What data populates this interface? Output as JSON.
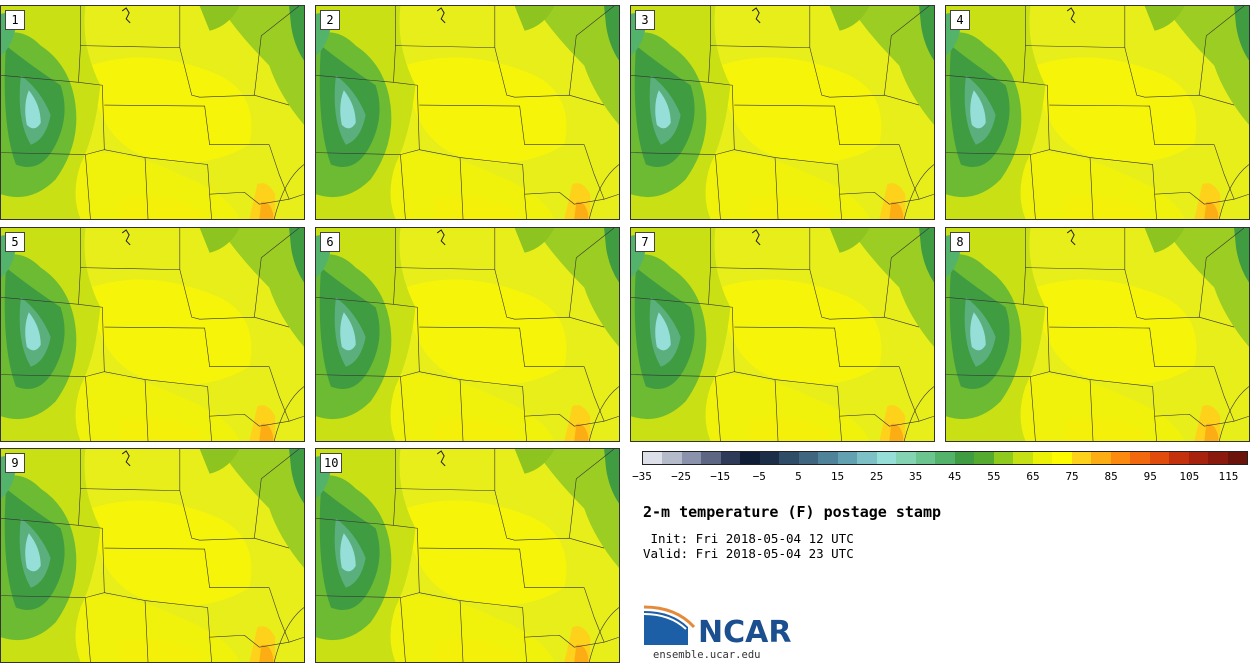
{
  "panels": [
    {
      "label": "1"
    },
    {
      "label": "2"
    },
    {
      "label": "3"
    },
    {
      "label": "4"
    },
    {
      "label": "5"
    },
    {
      "label": "6"
    },
    {
      "label": "7"
    },
    {
      "label": "8"
    },
    {
      "label": "9"
    },
    {
      "label": "10"
    }
  ],
  "colorbar": {
    "colors": [
      "#dde0e9",
      "#b6bbcb",
      "#8b92ab",
      "#5d6683",
      "#2e3a57",
      "#101d36",
      "#1d2f48",
      "#2f4d66",
      "#40667f",
      "#4f8399",
      "#62a1b0",
      "#7dc0c6",
      "#95dfd8",
      "#84d3b3",
      "#6cc48e",
      "#53b36a",
      "#3f9c41",
      "#54ab2f",
      "#8fca1e",
      "#c5e015",
      "#ecf108",
      "#fcfb00",
      "#fed21a",
      "#fdad14",
      "#fb8a0f",
      "#f2680c",
      "#e14c0c",
      "#c4320d",
      "#a8230d",
      "#8a1a0d",
      "#6b140c"
    ],
    "ticks": [
      "−35",
      "−25",
      "−15",
      "−5",
      "5",
      "15",
      "25",
      "35",
      "45",
      "55",
      "65",
      "75",
      "85",
      "95",
      "105",
      "115"
    ]
  },
  "title": "2-m temperature (F) postage stamp",
  "init": " Init: Fri 2018-05-04 12 UTC",
  "valid": "Valid: Fri 2018-05-04 23 UTC",
  "logo": {
    "text": "NCAR",
    "site": "ensemble.ucar.edu"
  }
}
